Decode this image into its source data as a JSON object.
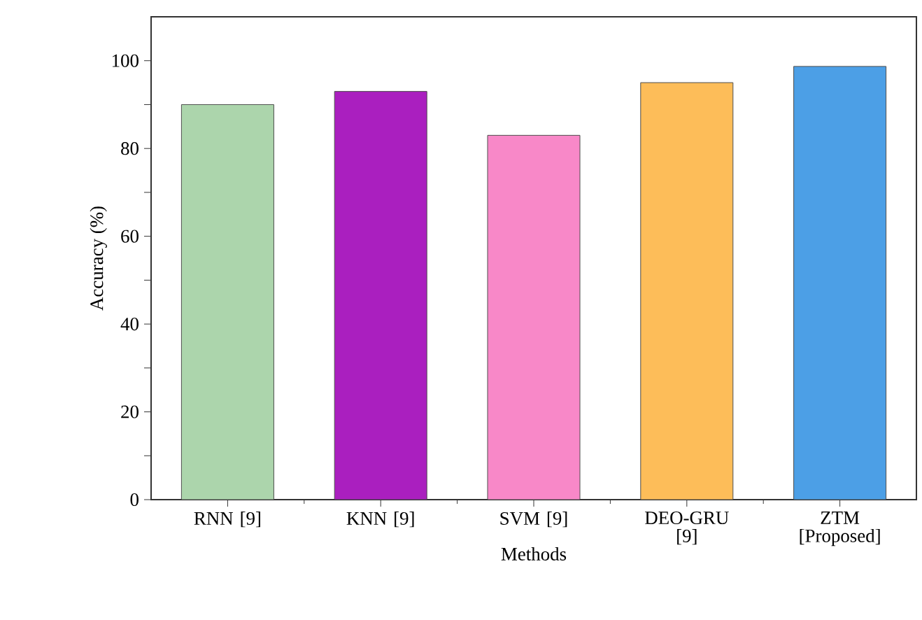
{
  "chart_data": {
    "type": "bar",
    "xlabel": "Methods",
    "ylabel": "Accuracy (%)",
    "categories": [
      "RNN [9]",
      "KNN [9]",
      "SVM [9]",
      "DEO-GRU [9]",
      "ZTM [Proposed]"
    ],
    "values": [
      90,
      93,
      83,
      95,
      98.7
    ],
    "colors": [
      "#acd5ac",
      "#aa1fbf",
      "#f888c8",
      "#fdbd59",
      "#4c9fe6"
    ],
    "ylim": [
      0,
      110
    ],
    "yticks": [
      0,
      {
        "value": 10,
        "label": null
      },
      20,
      {
        "value": 30,
        "label": null
      },
      40,
      {
        "value": 50,
        "label": null
      },
      60,
      {
        "value": 70,
        "label": null
      },
      80,
      {
        "value": 90,
        "label": null
      },
      100
    ],
    "grid": false
  }
}
